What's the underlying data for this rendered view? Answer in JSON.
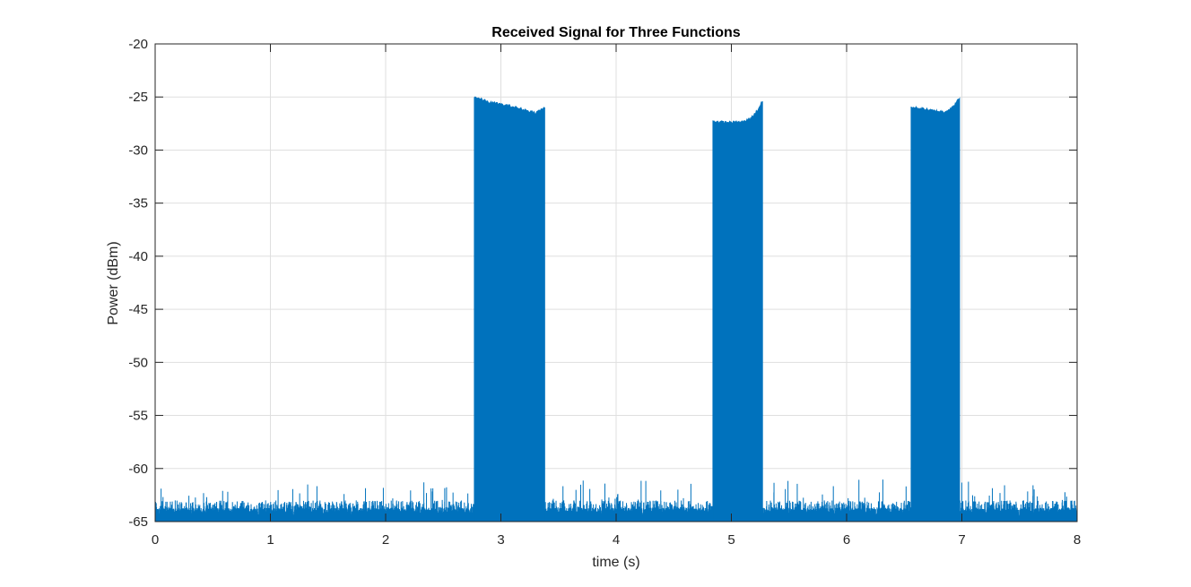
{
  "chart_data": {
    "type": "line",
    "title": "Received Signal for Three Functions",
    "xlabel": "time (s)",
    "ylabel": "Power (dBm)",
    "xlim": [
      0,
      8
    ],
    "ylim": [
      -65,
      -20
    ],
    "xticks": [
      "0",
      "1",
      "2",
      "3",
      "4",
      "5",
      "6",
      "7",
      "8"
    ],
    "yticks": [
      "-20",
      "-25",
      "-30",
      "-35",
      "-40",
      "-45",
      "-50",
      "-55",
      "-60",
      "-65"
    ],
    "grid": true,
    "line_color": "#0072BD",
    "noise_floor": {
      "baseline": -65,
      "typical_peak": -63.5,
      "max_spike": -61
    },
    "bursts": [
      {
        "start": 2.77,
        "end": 3.38,
        "envelope": [
          [
            2.77,
            -25.0
          ],
          [
            2.9,
            -25.5
          ],
          [
            3.0,
            -25.7
          ],
          [
            3.1,
            -25.9
          ],
          [
            3.2,
            -26.2
          ],
          [
            3.3,
            -26.5
          ],
          [
            3.38,
            -26.0
          ]
        ]
      },
      {
        "start": 4.84,
        "end": 5.27,
        "envelope": [
          [
            4.84,
            -27.3
          ],
          [
            4.95,
            -27.4
          ],
          [
            5.05,
            -27.4
          ],
          [
            5.12,
            -27.3
          ],
          [
            5.18,
            -26.9
          ],
          [
            5.23,
            -26.2
          ],
          [
            5.27,
            -25.4
          ]
        ]
      },
      {
        "start": 6.56,
        "end": 6.98,
        "envelope": [
          [
            6.56,
            -26.0
          ],
          [
            6.65,
            -26.1
          ],
          [
            6.75,
            -26.3
          ],
          [
            6.85,
            -26.4
          ],
          [
            6.92,
            -26.0
          ],
          [
            6.98,
            -25.1
          ]
        ]
      }
    ]
  }
}
